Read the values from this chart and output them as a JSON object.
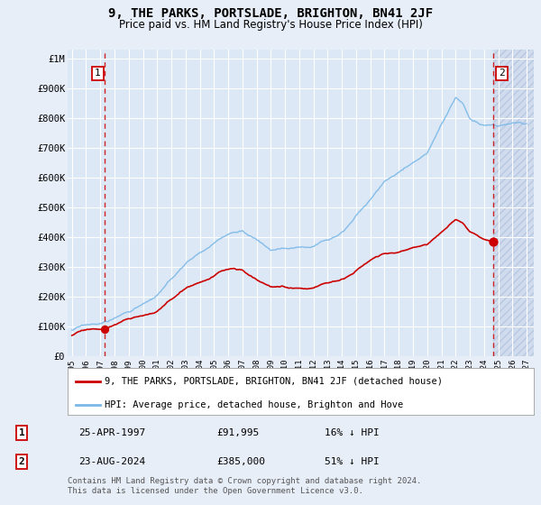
{
  "title": "9, THE PARKS, PORTSLADE, BRIGHTON, BN41 2JF",
  "subtitle": "Price paid vs. HM Land Registry's House Price Index (HPI)",
  "ylabel_ticks": [
    "£0",
    "£100K",
    "£200K",
    "£300K",
    "£400K",
    "£500K",
    "£600K",
    "£700K",
    "£800K",
    "£900K",
    "£1M"
  ],
  "ytick_vals": [
    0,
    100000,
    200000,
    300000,
    400000,
    500000,
    600000,
    700000,
    800000,
    900000,
    1000000
  ],
  "ylim": [
    0,
    1030000
  ],
  "xlim_start": 1994.7,
  "xlim_end": 2027.5,
  "xticks": [
    1995,
    1996,
    1997,
    1998,
    1999,
    2000,
    2001,
    2002,
    2003,
    2004,
    2005,
    2006,
    2007,
    2008,
    2009,
    2010,
    2011,
    2012,
    2013,
    2014,
    2015,
    2016,
    2017,
    2018,
    2019,
    2020,
    2021,
    2022,
    2023,
    2024,
    2025,
    2026,
    2027
  ],
  "sale1_date": 1997.32,
  "sale1_price": 91995,
  "sale1_label": "1",
  "sale2_date": 2024.65,
  "sale2_price": 385000,
  "sale2_label": "2",
  "legend_line1": "9, THE PARKS, PORTSLADE, BRIGHTON, BN41 2JF (detached house)",
  "legend_line2": "HPI: Average price, detached house, Brighton and Hove",
  "info1_label": "1",
  "info1_date": "25-APR-1997",
  "info1_price": "£91,995",
  "info1_hpi": "16% ↓ HPI",
  "info2_label": "2",
  "info2_date": "23-AUG-2024",
  "info2_price": "£385,000",
  "info2_hpi": "51% ↓ HPI",
  "footer": "Contains HM Land Registry data © Crown copyright and database right 2024.\nThis data is licensed under the Open Government Licence v3.0.",
  "hpi_color": "#7ab8e8",
  "sale_color": "#cc0000",
  "bg_color": "#e8eef8",
  "plot_bg": "#dce8f5",
  "grid_color": "#ffffff"
}
